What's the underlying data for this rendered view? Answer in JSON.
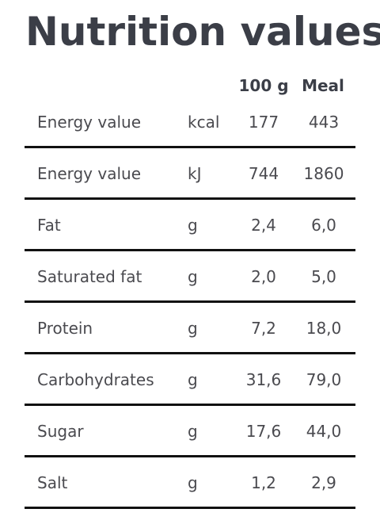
{
  "title": "Nutrition values",
  "columns": {
    "per_100g": "100 g",
    "meal": "Meal"
  },
  "rows": [
    {
      "name": "Energy value",
      "unit": "kcal",
      "per_100g": "177",
      "meal": "443"
    },
    {
      "name": "Energy value",
      "unit": "kJ",
      "per_100g": "744",
      "meal": "1860"
    },
    {
      "name": "Fat",
      "unit": "g",
      "per_100g": "2,4",
      "meal": "6,0"
    },
    {
      "name": "Saturated fat",
      "unit": "g",
      "per_100g": "2,0",
      "meal": "5,0"
    },
    {
      "name": "Protein",
      "unit": "g",
      "per_100g": "7,2",
      "meal": "18,0"
    },
    {
      "name": "Carbohydrates",
      "unit": "g",
      "per_100g": "31,6",
      "meal": "79,0"
    },
    {
      "name": "Sugar",
      "unit": "g",
      "per_100g": "17,6",
      "meal": "44,0"
    },
    {
      "name": "Salt",
      "unit": "g",
      "per_100g": "1,2",
      "meal": "2,9"
    }
  ]
}
